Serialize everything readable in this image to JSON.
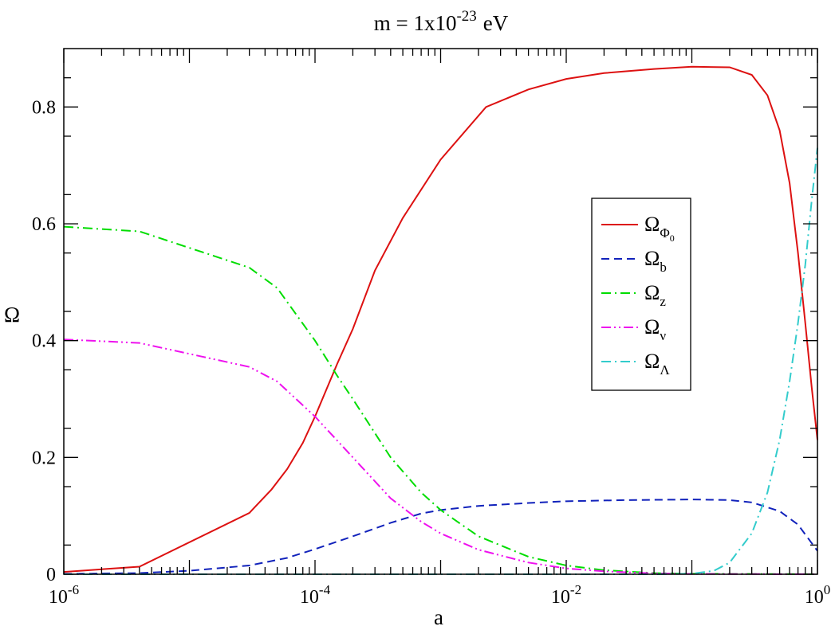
{
  "chart_data": {
    "type": "line",
    "title": {
      "prefix": "m = 1x10",
      "exponent": "-23",
      "suffix": "eV"
    },
    "xlabel": "a",
    "ylabel": "Ω",
    "xscale": "log",
    "xlim": [
      1e-06,
      1
    ],
    "ylim": [
      0,
      0.9
    ],
    "x_ticks": [
      {
        "value": 1e-06,
        "base": "10",
        "exp": "-6"
      },
      {
        "value": 0.0001,
        "base": "10",
        "exp": "-4"
      },
      {
        "value": 0.01,
        "base": "10",
        "exp": "-2"
      },
      {
        "value": 1,
        "base": "10",
        "exp": "0"
      }
    ],
    "y_ticks": [
      {
        "value": 0,
        "label": "0"
      },
      {
        "value": 0.2,
        "label": "0.2"
      },
      {
        "value": 0.4,
        "label": "0.4"
      },
      {
        "value": 0.6,
        "label": "0.6"
      },
      {
        "value": 0.8,
        "label": "0.8"
      }
    ],
    "y_minor_step": 0.1,
    "grid": false,
    "legend_position": "center-right",
    "series": [
      {
        "name": "Ω",
        "sub": "Φ",
        "subsub": "0",
        "color": "#dd1111",
        "dash": "solid",
        "points": [
          [
            1e-06,
            0.004
          ],
          [
            4e-06,
            0.013
          ],
          [
            3e-05,
            0.105
          ],
          [
            4.5e-05,
            0.145
          ],
          [
            6e-05,
            0.18
          ],
          [
            8e-05,
            0.225
          ],
          [
            0.0001,
            0.27
          ],
          [
            0.00015,
            0.36
          ],
          [
            0.0002,
            0.42
          ],
          [
            0.0003,
            0.52
          ],
          [
            0.0005,
            0.61
          ],
          [
            0.001,
            0.71
          ],
          [
            0.0023,
            0.8
          ],
          [
            0.005,
            0.83
          ],
          [
            0.01,
            0.848
          ],
          [
            0.02,
            0.858
          ],
          [
            0.05,
            0.865
          ],
          [
            0.1,
            0.869
          ],
          [
            0.2,
            0.868
          ],
          [
            0.3,
            0.855
          ],
          [
            0.4,
            0.82
          ],
          [
            0.5,
            0.76
          ],
          [
            0.6,
            0.67
          ],
          [
            0.7,
            0.55
          ],
          [
            0.8,
            0.43
          ],
          [
            0.9,
            0.32
          ],
          [
            1,
            0.23
          ]
        ]
      },
      {
        "name": "Ω",
        "sub": "b",
        "subsub": "",
        "color": "#1122bb",
        "dash": "dashed",
        "points": [
          [
            1e-06,
            0.0006
          ],
          [
            4e-06,
            0.002
          ],
          [
            1e-05,
            0.006
          ],
          [
            3e-05,
            0.015
          ],
          [
            6e-05,
            0.028
          ],
          [
            0.0001,
            0.043
          ],
          [
            0.0002,
            0.065
          ],
          [
            0.0004,
            0.088
          ],
          [
            0.0007,
            0.104
          ],
          [
            0.001,
            0.11
          ],
          [
            0.002,
            0.117
          ],
          [
            0.005,
            0.122
          ],
          [
            0.01,
            0.125
          ],
          [
            0.03,
            0.127
          ],
          [
            0.1,
            0.128
          ],
          [
            0.2,
            0.127
          ],
          [
            0.3,
            0.123
          ],
          [
            0.5,
            0.108
          ],
          [
            0.7,
            0.085
          ],
          [
            1,
            0.04
          ]
        ]
      },
      {
        "name": "Ω",
        "sub": "z",
        "subsub": "",
        "color": "#00dd00",
        "dash": "dashdot",
        "points": [
          [
            1e-06,
            0.595
          ],
          [
            4e-06,
            0.587
          ],
          [
            3e-05,
            0.525
          ],
          [
            5e-05,
            0.49
          ],
          [
            0.0001,
            0.4
          ],
          [
            0.00015,
            0.34
          ],
          [
            0.0002,
            0.3
          ],
          [
            0.0004,
            0.2
          ],
          [
            0.0007,
            0.14
          ],
          [
            0.001,
            0.11
          ],
          [
            0.002,
            0.065
          ],
          [
            0.005,
            0.03
          ],
          [
            0.01,
            0.015
          ],
          [
            0.02,
            0.007
          ],
          [
            0.05,
            0.002
          ],
          [
            0.1,
            0.0008
          ],
          [
            1,
            0.0001
          ]
        ]
      },
      {
        "name": "Ω",
        "sub": "ν",
        "subsub": "",
        "color": "#ee11ee",
        "dash": "dashdotdot",
        "points": [
          [
            1e-06,
            0.402
          ],
          [
            4e-06,
            0.396
          ],
          [
            3e-05,
            0.355
          ],
          [
            5e-05,
            0.33
          ],
          [
            0.0001,
            0.27
          ],
          [
            0.0002,
            0.2
          ],
          [
            0.0004,
            0.13
          ],
          [
            0.0007,
            0.09
          ],
          [
            0.001,
            0.07
          ],
          [
            0.002,
            0.042
          ],
          [
            0.005,
            0.02
          ],
          [
            0.01,
            0.01
          ],
          [
            0.02,
            0.005
          ],
          [
            0.05,
            0.0015
          ],
          [
            0.1,
            0.0005
          ],
          [
            1,
            0.0001
          ]
        ]
      },
      {
        "name": "Ω",
        "sub": "Λ",
        "subsub": "",
        "color": "#33cccc",
        "dash": "dashdot",
        "points": [
          [
            1e-06,
            0
          ],
          [
            0.05,
            0
          ],
          [
            0.1,
            0.001
          ],
          [
            0.15,
            0.006
          ],
          [
            0.2,
            0.02
          ],
          [
            0.3,
            0.07
          ],
          [
            0.4,
            0.14
          ],
          [
            0.5,
            0.23
          ],
          [
            0.6,
            0.33
          ],
          [
            0.7,
            0.43
          ],
          [
            0.8,
            0.53
          ],
          [
            0.9,
            0.64
          ],
          [
            1,
            0.73
          ]
        ]
      }
    ]
  }
}
